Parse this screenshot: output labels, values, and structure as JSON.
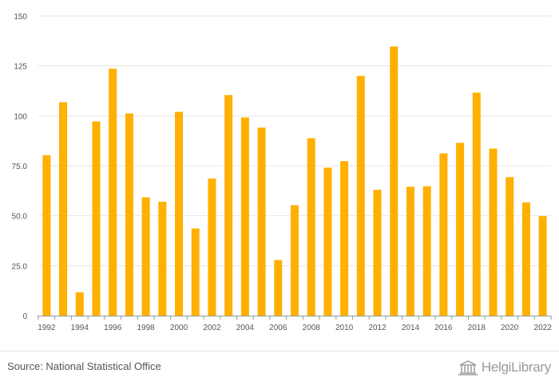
{
  "chart_data": {
    "type": "bar",
    "categories": [
      "1992",
      "1993",
      "1994",
      "1995",
      "1996",
      "1997",
      "1998",
      "1999",
      "2000",
      "2001",
      "2002",
      "2003",
      "2004",
      "2005",
      "2006",
      "2007",
      "2008",
      "2009",
      "2010",
      "2011",
      "2012",
      "2013",
      "2014",
      "2015",
      "2016",
      "2017",
      "2018",
      "2019",
      "2020",
      "2021",
      "2022"
    ],
    "x_tick_labels": [
      "1992",
      "1994",
      "1996",
      "1998",
      "2000",
      "2002",
      "2004",
      "2006",
      "2008",
      "2010",
      "2012",
      "2014",
      "2016",
      "2018",
      "2020",
      "2022"
    ],
    "values": [
      80.3,
      106.8,
      11.7,
      97.2,
      123.6,
      101.2,
      59.2,
      57.0,
      102.0,
      43.6,
      68.6,
      110.4,
      99.2,
      94.1,
      27.8,
      55.3,
      88.8,
      74.1,
      77.3,
      120.0,
      63.0,
      134.7,
      64.5,
      64.8,
      81.2,
      86.5,
      111.6,
      83.6,
      69.3,
      56.7,
      49.8
    ],
    "ylim": [
      0,
      150
    ],
    "y_ticks": [
      0,
      25,
      50,
      75,
      100,
      125,
      150
    ],
    "y_tick_labels": [
      "0",
      "25.0",
      "50.0",
      "75.0",
      "100",
      "125",
      "150"
    ],
    "title": "",
    "xlabel": "",
    "ylabel": "",
    "grid": true,
    "bar_color": "#ffb000",
    "grid_color": "#e6e6e6",
    "axis_color": "#999999"
  },
  "footer": {
    "source": "Source: National Statistical Office",
    "logo_text": "HelgiLibrary"
  }
}
